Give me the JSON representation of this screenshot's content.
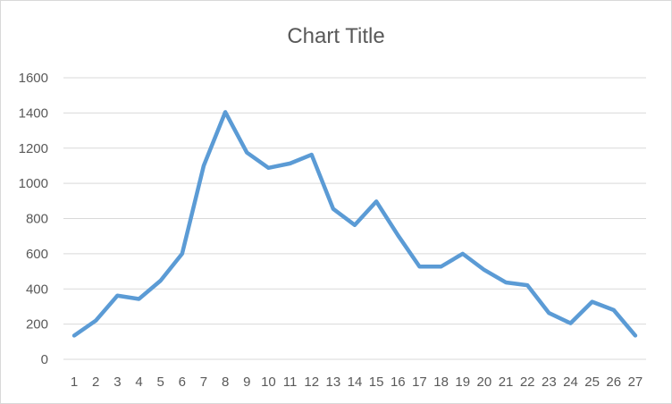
{
  "chart_data": {
    "type": "line",
    "title": "Chart Title",
    "xlabel": "",
    "ylabel": "",
    "ylim": [
      0,
      1600
    ],
    "yticks": [
      "0",
      "200",
      "400",
      "600",
      "800",
      "1000",
      "1200",
      "1400",
      "1600"
    ],
    "categories": [
      "1",
      "2",
      "3",
      "4",
      "5",
      "6",
      "7",
      "8",
      "9",
      "10",
      "11",
      "12",
      "13",
      "14",
      "15",
      "16",
      "17",
      "18",
      "19",
      "20",
      "21",
      "22",
      "23",
      "24",
      "25",
      "26",
      "27"
    ],
    "series": [
      {
        "color": "#5b9bd5",
        "values": [
          135,
          220,
          362,
          343,
          447,
          600,
          1100,
          1405,
          1175,
          1088,
          1113,
          1163,
          855,
          763,
          897,
          705,
          527,
          527,
          600,
          508,
          437,
          421,
          263,
          205,
          327,
          280,
          135
        ]
      }
    ],
    "grid": true,
    "legend": "none"
  }
}
